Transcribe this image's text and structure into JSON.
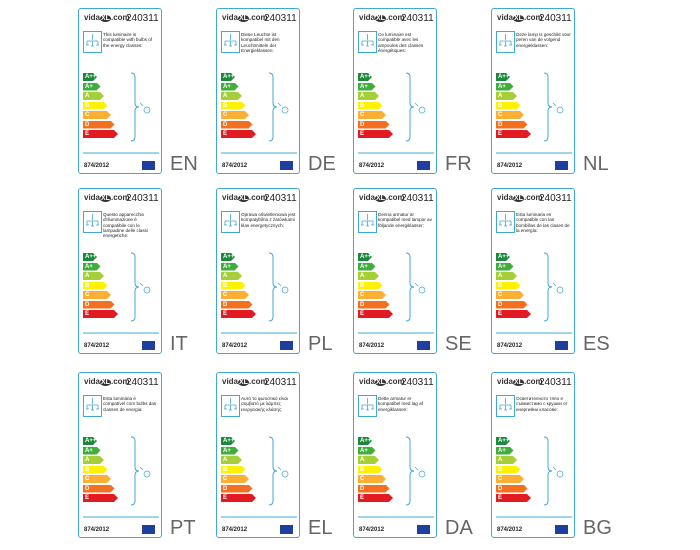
{
  "logo": {
    "part1": "vida",
    "part2": "XL",
    "part3": ".com"
  },
  "product_code": "240311",
  "regulation": "874/2012",
  "energy_classes": [
    "A++",
    "A+",
    "A",
    "B",
    "C",
    "D",
    "E"
  ],
  "labels": [
    {
      "lang": "EN",
      "text": "This luminaire is compatible with bulbs of the energy classes:"
    },
    {
      "lang": "DE",
      "text": "Diese Leuchte ist kompatibel mit den Leuchtmitteln der Energieklassen:"
    },
    {
      "lang": "FR",
      "text": "Ce luminaire est compatible avec les ampoules des classes énergétiques:"
    },
    {
      "lang": "NL",
      "text": "Deze lamp is geschikt voor peren van de volgend energieklassen:"
    },
    {
      "lang": "IT",
      "text": "Questo apparecchio d'illuminazione è compatibile con le lampadine delle classi energetiche:"
    },
    {
      "lang": "PL",
      "text": "Oprawa oświetleniowa jest kompatybilna z żarówkami klas energetycznych:"
    },
    {
      "lang": "SE",
      "text": "Denna armatur är kompatibel med lampor av följande energiklasser:"
    },
    {
      "lang": "ES",
      "text": "Esta luminaria es compatible con las bombillas de las clases de la energía:"
    },
    {
      "lang": "PT",
      "text": "Esta luminária é compatível com bulbs das classes de energia:"
    },
    {
      "lang": "EL",
      "text": "Αυτό το φωτιστικό είναι συμβατό με λάμπες ενεργειακής κλάσης:"
    },
    {
      "lang": "DA",
      "text": "Dette armatur er kompatibel med lag af energiklassen:"
    },
    {
      "lang": "BG",
      "text": "Осветителното тяло е съвместимо с крушки от енергийни класове:"
    }
  ]
}
